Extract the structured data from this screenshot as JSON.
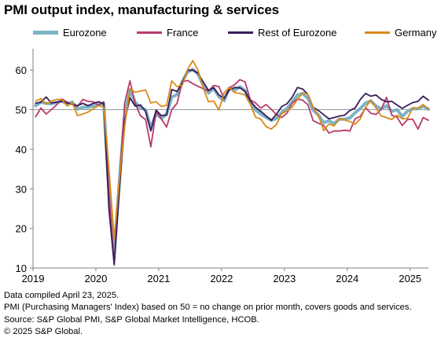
{
  "title": "PMI output index, manufacturing & services",
  "footnotes": [
    "Data compiled April 23, 2025.",
    "PMI (Purchasing Managers' Index) based on 50 = no change on prior month, covers goods and services.",
    "Source: S&P Global PMI, S&P Global Market Intelligence, HCOB.",
    "© 2025 S&P Global."
  ],
  "chart_data": {
    "type": "line",
    "title": "PMI output index, manufacturing & services",
    "xlabel": "",
    "ylabel": "",
    "ylim": [
      10,
      65
    ],
    "yticks": [
      10,
      20,
      30,
      40,
      50,
      60
    ],
    "xticks": [
      "2019",
      "2020",
      "2021",
      "2022",
      "2023",
      "2024",
      "2025"
    ],
    "reference_line": 50,
    "grid": false,
    "legend": "top",
    "x_start": "2019-01",
    "x_end": "2025-04",
    "frequency": "monthly",
    "series": [
      {
        "name": "Eurozone",
        "color": "#7bb3c4",
        "width": 4,
        "values": [
          51.0,
          51.9,
          51.6,
          51.5,
          51.8,
          52.2,
          51.5,
          51.9,
          50.1,
          50.6,
          50.6,
          50.9,
          51.3,
          51.6,
          29.7,
          13.6,
          31.9,
          48.5,
          54.9,
          51.9,
          50.4,
          50.0,
          45.3,
          49.1,
          47.8,
          48.8,
          53.2,
          53.8,
          57.1,
          59.5,
          60.2,
          59.0,
          56.2,
          54.2,
          55.4,
          53.3,
          52.3,
          55.5,
          54.9,
          55.8,
          54.8,
          52.0,
          49.9,
          48.9,
          48.1,
          47.3,
          47.8,
          49.3,
          50.3,
          52.0,
          53.7,
          54.1,
          52.8,
          49.9,
          48.6,
          46.7,
          47.2,
          46.5,
          47.6,
          47.6,
          47.9,
          49.2,
          50.3,
          51.7,
          52.2,
          50.9,
          50.2,
          51.0,
          49.6,
          50.0,
          48.3,
          49.6,
          50.2,
          50.2,
          50.9,
          50.1
        ]
      },
      {
        "name": "France",
        "color": "#b73a6d",
        "width": 1.8,
        "values": [
          48.2,
          50.4,
          48.9,
          50.0,
          51.2,
          52.7,
          51.9,
          51.3,
          50.8,
          52.6,
          52.1,
          52.0,
          51.1,
          52.0,
          28.9,
          11.1,
          32.1,
          51.7,
          57.3,
          51.6,
          48.5,
          47.5,
          40.6,
          49.5,
          47.7,
          45.6,
          50.0,
          51.6,
          57.0,
          57.4,
          56.6,
          55.9,
          55.3,
          54.7,
          56.1,
          55.8,
          52.7,
          55.5,
          56.3,
          57.6,
          57.0,
          52.5,
          51.7,
          50.4,
          51.3,
          50.1,
          48.7,
          48.0,
          49.1,
          51.7,
          52.7,
          52.4,
          51.2,
          47.2,
          46.6,
          46.0,
          44.1,
          44.6,
          44.6,
          44.8,
          44.6,
          47.7,
          48.3,
          50.5,
          49.1,
          48.8,
          50.1,
          53.1,
          48.6,
          48.1,
          46.0,
          47.5,
          47.6,
          45.1,
          48.0,
          47.3
        ]
      },
      {
        "name": "Rest of Eurozone",
        "color": "#3b1c5a",
        "width": 1.8,
        "values": [
          51.6,
          51.9,
          53.2,
          51.7,
          51.9,
          52.1,
          51.7,
          51.4,
          51.0,
          51.6,
          51.0,
          51.6,
          52.0,
          51.5,
          24.8,
          10.8,
          30.0,
          47.1,
          53.0,
          50.9,
          51.2,
          49.6,
          44.6,
          49.9,
          48.5,
          48.7,
          55.1,
          54.6,
          56.8,
          59.9,
          60.0,
          59.2,
          57.0,
          54.9,
          55.5,
          53.7,
          52.9,
          55.0,
          55.6,
          55.5,
          54.6,
          52.2,
          50.6,
          49.6,
          48.4,
          47.3,
          48.9,
          50.8,
          51.5,
          53.2,
          55.6,
          55.2,
          53.8,
          50.6,
          49.8,
          48.7,
          47.7,
          48.0,
          48.4,
          48.6,
          49.8,
          50.4,
          52.6,
          54.1,
          53.4,
          53.7,
          52.6,
          52.0,
          52.1,
          51.2,
          50.3,
          51.1,
          51.8,
          52.1,
          53.4,
          52.4
        ]
      },
      {
        "name": "Germany",
        "color": "#d98a18",
        "width": 1.8,
        "values": [
          52.1,
          52.8,
          51.4,
          52.2,
          52.6,
          52.6,
          50.9,
          51.7,
          48.5,
          48.9,
          49.4,
          50.2,
          51.0,
          50.7,
          35.0,
          17.4,
          32.3,
          45.8,
          55.3,
          54.4,
          54.7,
          55.0,
          51.7,
          52.0,
          50.8,
          51.1,
          57.3,
          55.8,
          56.2,
          60.1,
          62.4,
          60.0,
          55.5,
          52.0,
          52.2,
          49.9,
          54.3,
          55.6,
          54.3,
          54.1,
          53.7,
          51.3,
          48.1,
          47.6,
          45.7,
          45.1,
          46.3,
          49.0,
          49.7,
          50.7,
          52.6,
          54.2,
          53.9,
          50.6,
          48.5,
          44.7,
          46.4,
          45.9,
          47.8,
          47.4,
          47.0,
          46.3,
          47.7,
          50.6,
          52.4,
          50.4,
          48.4,
          48.0,
          47.5,
          48.6,
          47.7,
          47.8,
          50.5,
          50.4,
          51.3,
          50.1
        ]
      }
    ]
  }
}
